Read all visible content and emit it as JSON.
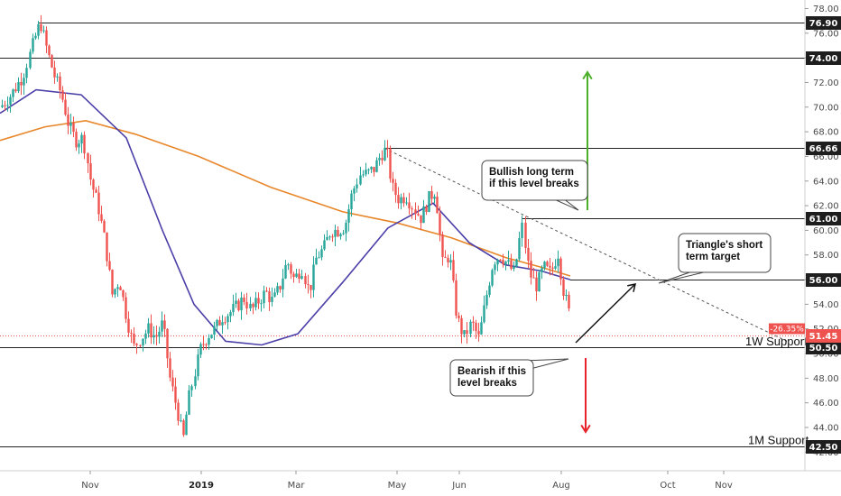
{
  "chart_data": {
    "type": "candlestick",
    "ylim": [
      41.2,
      78.6
    ],
    "yticks": [
      "42.00",
      "44.00",
      "46.00",
      "48.00",
      "50.00",
      "52.00",
      "54.00",
      "56.00",
      "58.00",
      "60.00",
      "62.00",
      "64.00",
      "66.00",
      "68.00",
      "70.00",
      "72.00",
      "74.00",
      "76.00",
      "78.00"
    ],
    "xticks": [
      {
        "label": "Nov",
        "bold": false
      },
      {
        "label": "2019",
        "bold": true
      },
      {
        "label": "Mar",
        "bold": false
      },
      {
        "label": "May",
        "bold": false
      },
      {
        "label": "Jun",
        "bold": false
      },
      {
        "label": "Aug",
        "bold": false
      },
      {
        "label": "Oct",
        "bold": false
      },
      {
        "label": "Nov",
        "bold": false
      }
    ],
    "levels": [
      {
        "label": "76.90",
        "value": 76.9
      },
      {
        "label": "74.00",
        "value": 74.0
      },
      {
        "label": "66.66",
        "value": 66.66
      },
      {
        "label": "61.00",
        "value": 61.0
      },
      {
        "label": "56.00",
        "value": 56.0
      },
      {
        "label": "50.50",
        "value": 50.5
      },
      {
        "label": "42.50",
        "value": 42.5
      }
    ],
    "current_price": {
      "label": "51.45",
      "value": 51.45,
      "change": "-26.35%"
    },
    "support_labels": [
      {
        "text": "1W Support",
        "value": 50.5
      },
      {
        "text": "1M Support",
        "value": 42.5
      }
    ],
    "annotations": [
      {
        "text": [
          "Bullish long term",
          "if this level breaks"
        ]
      },
      {
        "text": [
          "Triangle's short",
          "term target"
        ]
      },
      {
        "text": [
          "Bearish if this",
          "level breaks"
        ]
      }
    ],
    "series": [
      {
        "name": "",
        "color": "#e8862a",
        "kind": "moving-average-slow",
        "points": [
          [
            0,
            67.3
          ],
          [
            50,
            68.4
          ],
          [
            95,
            68.9
          ],
          [
            150,
            67.8
          ],
          [
            220,
            66.0
          ],
          [
            300,
            63.5
          ],
          [
            380,
            61.5
          ],
          [
            440,
            60.6
          ],
          [
            500,
            59.4
          ],
          [
            560,
            57.8
          ],
          [
            600,
            57.0
          ],
          [
            632,
            56.3
          ]
        ]
      },
      {
        "name": "",
        "color": "#4b3fa8",
        "kind": "moving-average-fast",
        "points": [
          [
            0,
            69.5
          ],
          [
            40,
            71.4
          ],
          [
            90,
            71.0
          ],
          [
            140,
            67.5
          ],
          [
            180,
            60.0
          ],
          [
            215,
            54.0
          ],
          [
            250,
            51.0
          ],
          [
            290,
            50.7
          ],
          [
            330,
            51.6
          ],
          [
            380,
            55.8
          ],
          [
            430,
            60.2
          ],
          [
            480,
            62.2
          ],
          [
            520,
            59.0
          ],
          [
            560,
            57.2
          ],
          [
            600,
            56.7
          ],
          [
            632,
            56.0
          ]
        ]
      }
    ],
    "colors": {
      "up": "#26a69a",
      "down": "#ef5350",
      "level_line": "#222222",
      "dashed": "#555555",
      "bull_arrow": "#4caf2a",
      "bear_arrow": "#e8222a",
      "price_line": "#ef5350"
    }
  }
}
